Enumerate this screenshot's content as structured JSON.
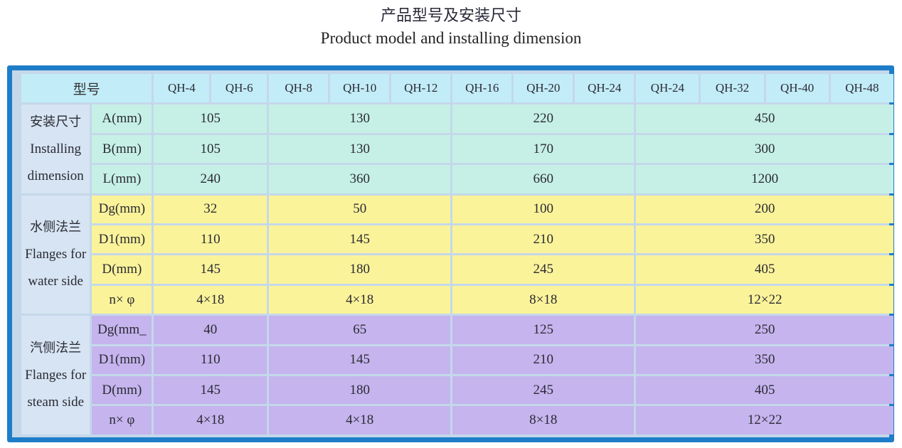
{
  "title_cn": "产品型号及安装尺寸",
  "title_en": "Product model and installing dimension",
  "header": {
    "label": "型号",
    "models": [
      "QH-4",
      "QH-6",
      "QH-8",
      "QH-10",
      "QH-12",
      "QH-16",
      "QH-20",
      "QH-24",
      "QH-24",
      "QH-32",
      "QH-40",
      "QH-48"
    ]
  },
  "groups": [
    {
      "cn": "安装尺寸",
      "en1": "Installing",
      "en2": "dimension",
      "rows": [
        {
          "param": "A(mm)",
          "values": [
            "105",
            "130",
            "220",
            "450"
          ]
        },
        {
          "param": "B(mm)",
          "values": [
            "105",
            "130",
            "170",
            "300"
          ]
        },
        {
          "param": "L(mm)",
          "values": [
            "240",
            "360",
            "660",
            "1200"
          ]
        }
      ]
    },
    {
      "cn": "水侧法兰",
      "en1": "Flanges for",
      "en2": "water side",
      "rows": [
        {
          "param": "Dg(mm)",
          "values": [
            "32",
            "50",
            "100",
            "200"
          ]
        },
        {
          "param": "D1(mm)",
          "values": [
            "110",
            "145",
            "210",
            "350"
          ]
        },
        {
          "param": "D(mm)",
          "values": [
            "145",
            "180",
            "245",
            "405"
          ]
        },
        {
          "param": "n× φ",
          "values": [
            "4×18",
            "4×18",
            "8×18",
            "12×22"
          ]
        }
      ]
    },
    {
      "cn": "汽侧法兰",
      "en1": "Flanges for",
      "en2": "steam side",
      "rows": [
        {
          "param": "Dg(mm_",
          "values": [
            "40",
            "65",
            "125",
            "250"
          ]
        },
        {
          "param": "D1(mm)",
          "values": [
            "110",
            "145",
            "210",
            "350"
          ]
        },
        {
          "param": "D(mm)",
          "values": [
            "145",
            "180",
            "245",
            "405"
          ]
        },
        {
          "param": "n× φ",
          "values": [
            "4×18",
            "4×18",
            "8×18",
            "12×22"
          ]
        }
      ]
    }
  ]
}
